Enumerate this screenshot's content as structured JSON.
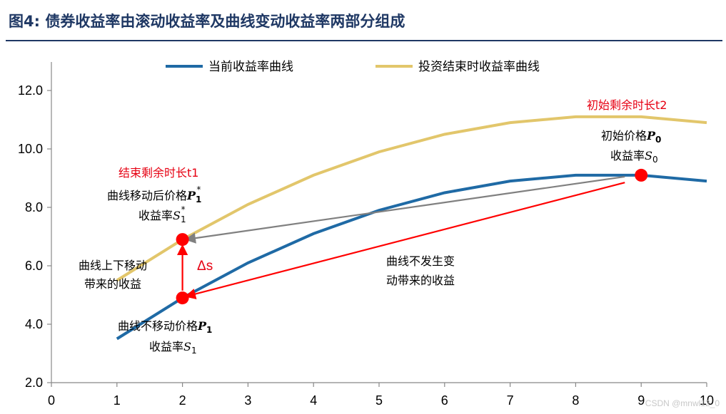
{
  "title": "图4:  债券收益率由滚动收益率及曲线变动收益率两部分组成",
  "watermark": "CSDN @mnwl12_0",
  "chart_data": {
    "type": "line",
    "xlim": [
      0,
      10
    ],
    "ylim": [
      2.0,
      13.0
    ],
    "x_ticks": [
      "0",
      "1",
      "2",
      "3",
      "4",
      "5",
      "6",
      "7",
      "8",
      "9",
      "10"
    ],
    "y_ticks": [
      "2.0",
      "4.0",
      "6.0",
      "8.0",
      "10.0",
      "12.0"
    ],
    "legend_position": "top",
    "series": [
      {
        "name": "当前收益率曲线",
        "color": "#1f6aa5",
        "x": [
          1,
          2,
          3,
          4,
          5,
          6,
          7,
          8,
          9,
          10
        ],
        "y": [
          3.5,
          4.9,
          6.1,
          7.1,
          7.9,
          8.5,
          8.9,
          9.1,
          9.1,
          8.9
        ]
      },
      {
        "name": "投资结束时收益率曲线",
        "color": "#e2c66b",
        "x": [
          1,
          2,
          3,
          4,
          5,
          6,
          7,
          8,
          9,
          10
        ],
        "y": [
          5.5,
          6.9,
          8.1,
          9.1,
          9.9,
          10.5,
          10.9,
          11.1,
          11.1,
          10.9
        ]
      }
    ],
    "points": [
      {
        "id": "p0",
        "x": 9,
        "y": 9.1,
        "color": "#ff0000"
      },
      {
        "id": "p1",
        "x": 2,
        "y": 4.9,
        "color": "#ff0000"
      },
      {
        "id": "p1s",
        "x": 2,
        "y": 6.9,
        "color": "#ff0000"
      }
    ],
    "arrows": [
      {
        "id": "gray-arrow",
        "from": [
          8.75,
          9.05
        ],
        "to": [
          2.05,
          6.9
        ],
        "color": "#808080"
      },
      {
        "id": "red-arrow",
        "from": [
          8.75,
          8.85
        ],
        "to": [
          2.05,
          4.95
        ],
        "color": "#ff0000"
      },
      {
        "id": "vertical-arrow",
        "from": [
          2,
          5.15
        ],
        "to": [
          2,
          6.7
        ],
        "color": "#ff0000"
      }
    ],
    "annotations": {
      "initial_remaining": "初始剩余时长t2",
      "initial_price": "初始价格",
      "initial_price_sym": "P",
      "initial_price_sub": "0",
      "initial_yield": "收益率",
      "initial_yield_sym": "S",
      "initial_yield_sub": "0",
      "end_remaining": "结束剩余时长t1",
      "moved_price": "曲线移动后价格",
      "moved_price_sym": "P",
      "moved_price_sub": "1",
      "moved_price_sup": "*",
      "moved_yield": "收益率",
      "moved_yield_sym": "S",
      "moved_yield_sub": "1",
      "moved_yield_sup": "*",
      "shift_line1": "曲线上下移动",
      "shift_line2": "带来的收益",
      "delta_s": "Δs",
      "nochange_line1": "曲线不发生变",
      "nochange_line2": "动带来的收益",
      "unmoved_price": "曲线不移动价格",
      "unmoved_price_sym": "P",
      "unmoved_price_sub": "1",
      "unmoved_yield": "收益率",
      "unmoved_yield_sym": "S",
      "unmoved_yield_sub": "1"
    }
  }
}
